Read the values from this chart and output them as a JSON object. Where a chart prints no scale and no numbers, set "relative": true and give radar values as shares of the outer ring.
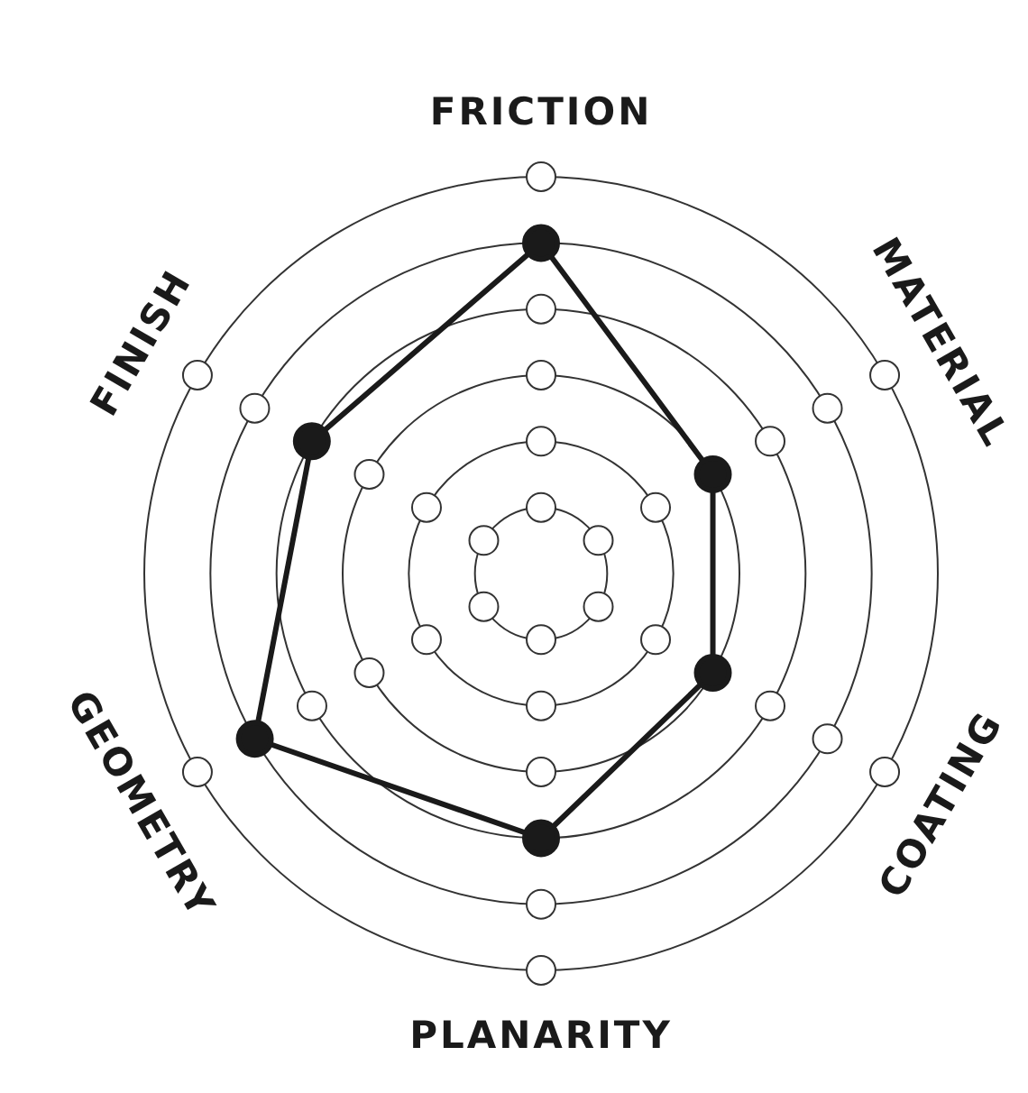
{
  "chart_data": {
    "type": "radar",
    "relative": true,
    "categories": [
      "FRICTION",
      "MATERIAL",
      "COATING",
      "PLANARITY",
      "GEOMETRY",
      "FINISH"
    ],
    "series": [
      {
        "color": "#1a1a1a",
        "values": [
          0.833,
          0.5,
          0.5,
          0.667,
          0.833,
          0.667
        ]
      }
    ],
    "grid": true,
    "marker": "circle",
    "line_style": "solid"
  }
}
